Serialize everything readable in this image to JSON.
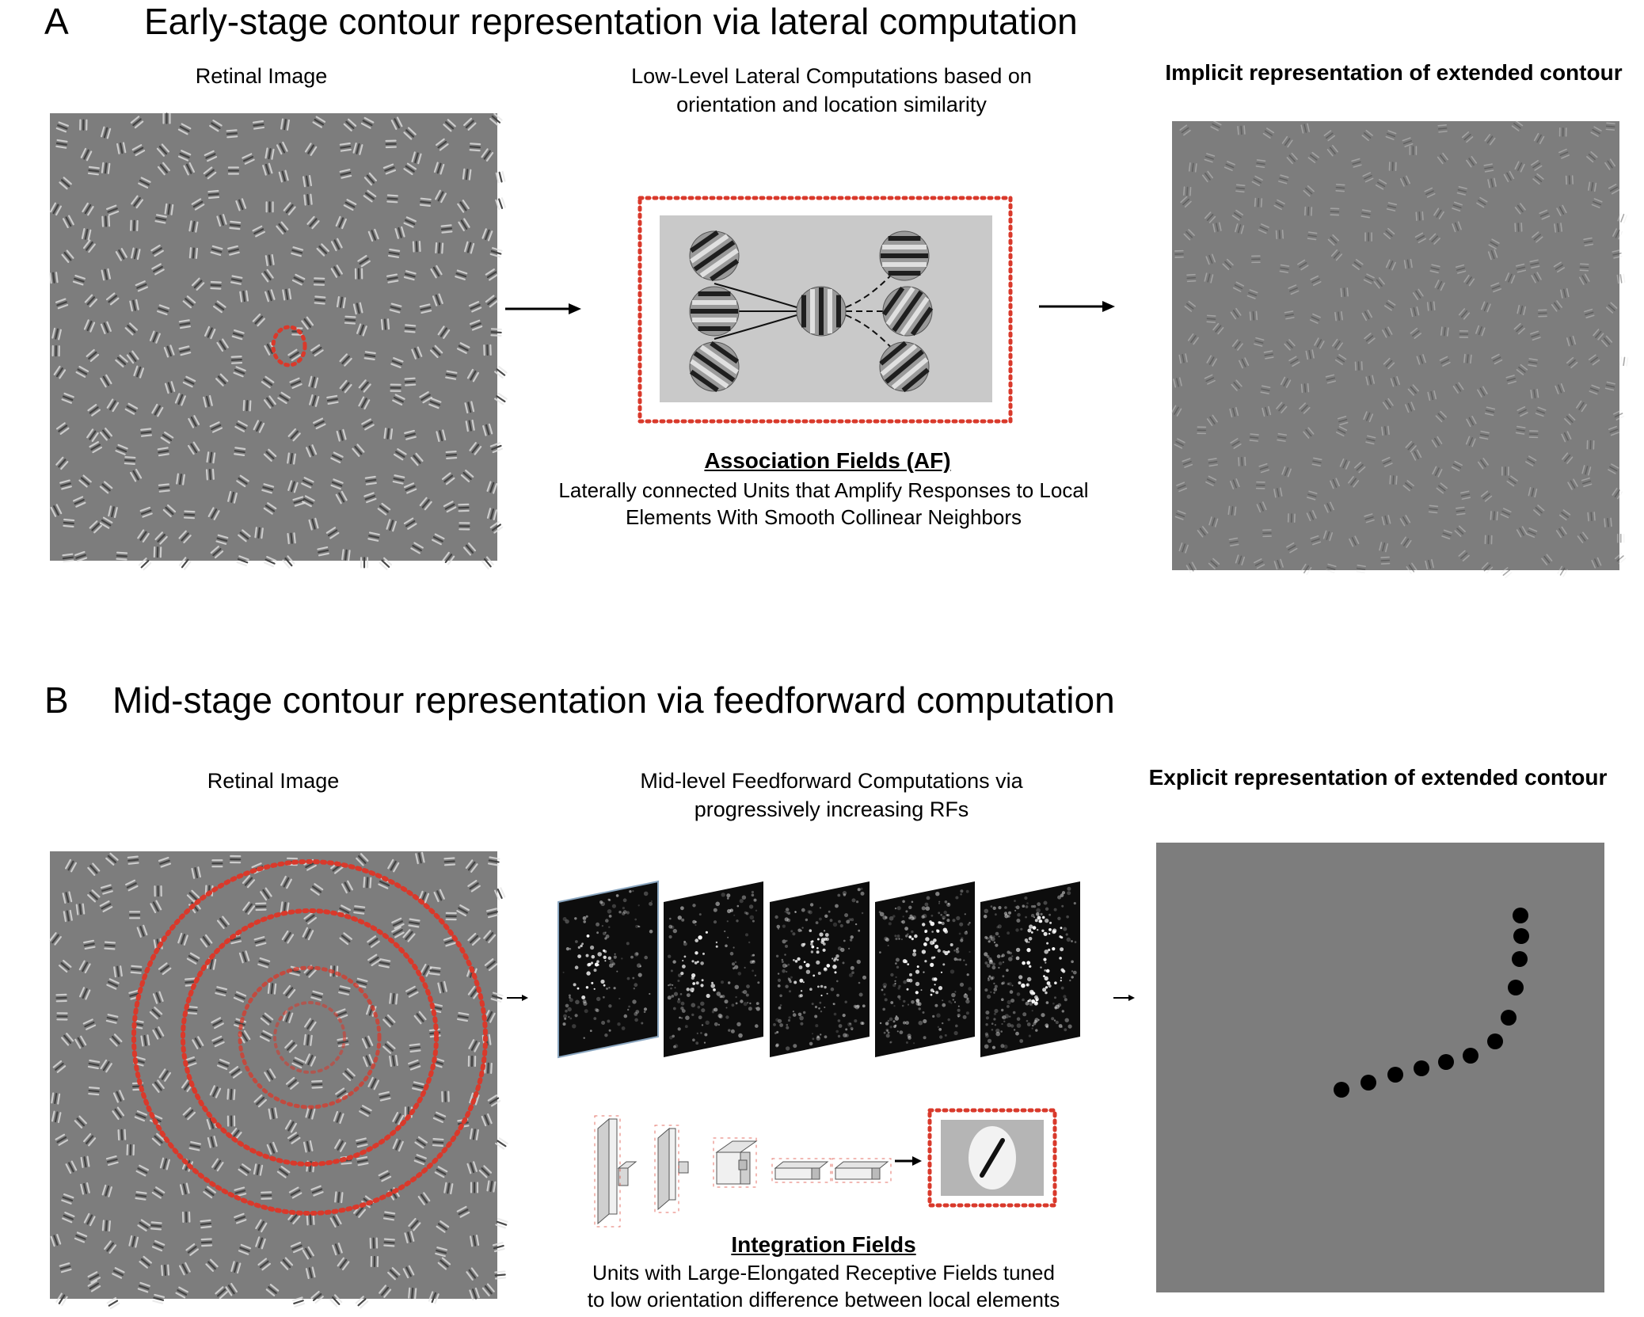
{
  "panelA": {
    "letter": "A",
    "title": "Early-stage contour representation via lateral computation",
    "col1_label": "Retinal Image",
    "col2_label_line1": "Low-Level Lateral Computations based on",
    "col2_label_line2": "orientation and location similarity",
    "col3_label": "Implicit representation of extended contour",
    "af_title": "Association Fields (AF)",
    "af_desc_line1": "Laterally connected Units that Amplify Responses to Local",
    "af_desc_line2": "Elements With  Smooth Collinear Neighbors"
  },
  "panelB": {
    "letter": "B",
    "title": "Mid-stage contour representation via feedforward computation",
    "col1_label": "Retinal Image",
    "col2_label_line1": "Mid-level Feedforward Computations via",
    "col2_label_line2": "progressively increasing RFs",
    "col3_label": "Explicit representation of extended contour",
    "if_title": "Integration Fields",
    "if_desc_line1": "Units with Large-Elongated Receptive Fields tuned",
    "if_desc_line2": "to low orientation difference between local elements"
  },
  "colors": {
    "stimulus_gray": "#7d7d7d",
    "highlight_red": "#d9392b",
    "feature_map_bg": "#0d0d0d"
  }
}
